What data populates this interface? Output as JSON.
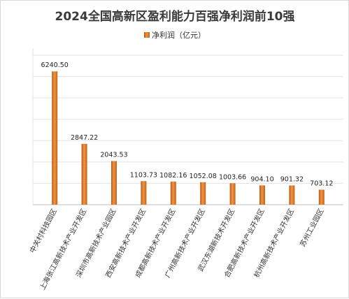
{
  "chart_data": {
    "type": "bar",
    "title": "2024全国高新区盈利能力百强净利润前10强",
    "legend_position": "top",
    "grid": true,
    "ylim": [
      0,
      7000
    ],
    "categories": [
      "中关村科技园区",
      "上海张江高新技术产业开发区",
      "深圳市高新技术产业园区",
      "西安高新技术产业开发区",
      "成都高新技术产业开发区",
      "广州高新技术产业开发区",
      "武汉东湖新技术开发区",
      "合肥高新技术产业开发区",
      "杭州高新技术产业开发区",
      "苏州工业园区"
    ],
    "series": [
      {
        "name": "净利润（亿元）",
        "color": "#e07a2a",
        "values": [
          6240.5,
          2847.22,
          2043.53,
          1103.73,
          1082.16,
          1052.08,
          1003.66,
          904.1,
          901.32,
          703.12
        ],
        "labels": [
          "6240.50",
          "2847.22",
          "2043.53",
          "1103.73",
          "1082.16",
          "1052.08",
          "1003.66",
          "904.10",
          "901.32",
          "703.12"
        ]
      }
    ]
  }
}
